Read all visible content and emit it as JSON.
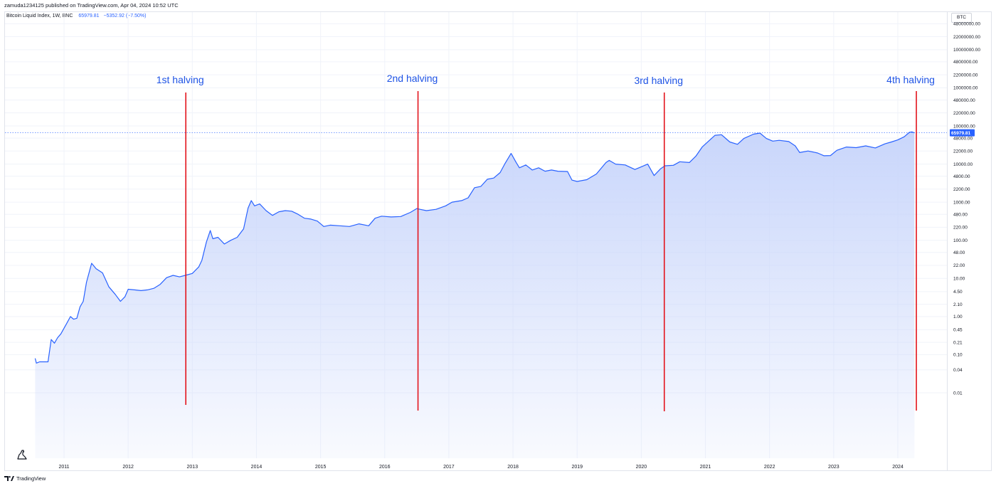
{
  "publisher": "zamuda1234125 published on TradingView.com, Apr 04, 2024 10:52 UTC",
  "legend": {
    "symbol": "Bitcoin Liquid Index, 1W, BNC",
    "value": "65979.81",
    "change": "−5352.92 (−7.50%)"
  },
  "currency_button": "BTC",
  "footer": {
    "brand": "TradingView"
  },
  "icons": {
    "watermark": "dino-icon",
    "brand": "tradingview-logo-icon"
  },
  "colors": {
    "line": "#2962ff",
    "fill_top": "#c9d6fb",
    "halving_line": "#e3141c",
    "annotation": "#1e53e5",
    "last_price_bg": "#2962ff"
  },
  "chart_data": {
    "type": "area",
    "title": "",
    "xlabel": "",
    "ylabel": "",
    "yscale": "log",
    "grid": true,
    "last_price": {
      "value": 65979.81,
      "label": "65979.81"
    },
    "x_ticks": [
      "2011",
      "2012",
      "2013",
      "2014",
      "2015",
      "2016",
      "2017",
      "2018",
      "2019",
      "2020",
      "2021",
      "2022",
      "2023",
      "2024"
    ],
    "y_ticks": [
      {
        "v": 48000000,
        "label": "48000000.00"
      },
      {
        "v": 22000000,
        "label": "22000000.00"
      },
      {
        "v": 10000000,
        "label": "10000000.00"
      },
      {
        "v": 4800000,
        "label": "4800000.00"
      },
      {
        "v": 2200000,
        "label": "2200000.00"
      },
      {
        "v": 1000000,
        "label": "1000000.00"
      },
      {
        "v": 480000,
        "label": "480000.00"
      },
      {
        "v": 220000,
        "label": "220000.00"
      },
      {
        "v": 100000,
        "label": "100000.00"
      },
      {
        "v": 48000,
        "label": "48000.00"
      },
      {
        "v": 22000,
        "label": "22000.00"
      },
      {
        "v": 10000,
        "label": "10000.00"
      },
      {
        "v": 4800,
        "label": "4800.00"
      },
      {
        "v": 2200,
        "label": "2200.00"
      },
      {
        "v": 1000,
        "label": "1000.00"
      },
      {
        "v": 480,
        "label": "480.00"
      },
      {
        "v": 220,
        "label": "220.00"
      },
      {
        "v": 100,
        "label": "100.00"
      },
      {
        "v": 48,
        "label": "48.00"
      },
      {
        "v": 22,
        "label": "22.00"
      },
      {
        "v": 10,
        "label": "10.00"
      },
      {
        "v": 4.5,
        "label": "4.50"
      },
      {
        "v": 2.1,
        "label": "2.10"
      },
      {
        "v": 1,
        "label": "1.00"
      },
      {
        "v": 0.45,
        "label": "0.45"
      },
      {
        "v": 0.21,
        "label": "0.21"
      },
      {
        "v": 0.1,
        "label": "0.10"
      },
      {
        "v": 0.04,
        "label": "0.04"
      },
      {
        "v": 0.01,
        "label": "0.01"
      }
    ],
    "annotations": [
      {
        "label": "1st halving",
        "date": 2012.91
      },
      {
        "label": "2nd halving",
        "date": 2016.53
      },
      {
        "label": "3rd halving",
        "date": 2020.37
      },
      {
        "label": "4th halving",
        "date": 2024.3
      }
    ],
    "series": [
      {
        "values": [
          [
            2010.55,
            0.08
          ],
          [
            2010.57,
            0.06
          ],
          [
            2010.62,
            0.065
          ],
          [
            2010.75,
            0.065
          ],
          [
            2010.8,
            0.25
          ],
          [
            2010.85,
            0.2
          ],
          [
            2010.9,
            0.28
          ],
          [
            2010.95,
            0.35
          ],
          [
            2011.05,
            0.7
          ],
          [
            2011.1,
            1.0
          ],
          [
            2011.15,
            0.85
          ],
          [
            2011.2,
            0.9
          ],
          [
            2011.25,
            1.8
          ],
          [
            2011.3,
            2.5
          ],
          [
            2011.35,
            8
          ],
          [
            2011.43,
            25
          ],
          [
            2011.5,
            18
          ],
          [
            2011.6,
            14
          ],
          [
            2011.7,
            6
          ],
          [
            2011.8,
            3.8
          ],
          [
            2011.88,
            2.5
          ],
          [
            2011.95,
            3.3
          ],
          [
            2012.0,
            5.2
          ],
          [
            2012.1,
            5.0
          ],
          [
            2012.2,
            4.8
          ],
          [
            2012.3,
            5.0
          ],
          [
            2012.4,
            5.5
          ],
          [
            2012.5,
            7.0
          ],
          [
            2012.6,
            10.5
          ],
          [
            2012.7,
            12
          ],
          [
            2012.8,
            11
          ],
          [
            2012.91,
            12.3
          ],
          [
            2013.0,
            13.5
          ],
          [
            2013.1,
            20
          ],
          [
            2013.15,
            30
          ],
          [
            2013.22,
            90
          ],
          [
            2013.28,
            180
          ],
          [
            2013.32,
            110
          ],
          [
            2013.4,
            120
          ],
          [
            2013.5,
            80
          ],
          [
            2013.6,
            100
          ],
          [
            2013.7,
            120
          ],
          [
            2013.8,
            200
          ],
          [
            2013.87,
            700
          ],
          [
            2013.92,
            1100
          ],
          [
            2013.97,
            800
          ],
          [
            2014.05,
            900
          ],
          [
            2014.15,
            600
          ],
          [
            2014.25,
            450
          ],
          [
            2014.35,
            560
          ],
          [
            2014.45,
            600
          ],
          [
            2014.55,
            580
          ],
          [
            2014.65,
            480
          ],
          [
            2014.75,
            380
          ],
          [
            2014.85,
            360
          ],
          [
            2014.95,
            320
          ],
          [
            2015.05,
            230
          ],
          [
            2015.15,
            250
          ],
          [
            2015.3,
            240
          ],
          [
            2015.45,
            230
          ],
          [
            2015.6,
            270
          ],
          [
            2015.75,
            240
          ],
          [
            2015.85,
            380
          ],
          [
            2015.95,
            430
          ],
          [
            2016.1,
            410
          ],
          [
            2016.25,
            420
          ],
          [
            2016.4,
            540
          ],
          [
            2016.5,
            680
          ],
          [
            2016.55,
            650
          ],
          [
            2016.65,
            600
          ],
          [
            2016.8,
            650
          ],
          [
            2016.95,
            800
          ],
          [
            2017.05,
            1000
          ],
          [
            2017.2,
            1100
          ],
          [
            2017.3,
            1300
          ],
          [
            2017.4,
            2400
          ],
          [
            2017.5,
            2600
          ],
          [
            2017.6,
            4000
          ],
          [
            2017.7,
            4300
          ],
          [
            2017.8,
            6000
          ],
          [
            2017.87,
            10000
          ],
          [
            2017.97,
            19000
          ],
          [
            2018.05,
            11000
          ],
          [
            2018.1,
            8000
          ],
          [
            2018.2,
            9500
          ],
          [
            2018.3,
            7000
          ],
          [
            2018.4,
            8000
          ],
          [
            2018.5,
            6500
          ],
          [
            2018.6,
            7000
          ],
          [
            2018.7,
            6500
          ],
          [
            2018.85,
            6400
          ],
          [
            2018.92,
            3800
          ],
          [
            2019.0,
            3500
          ],
          [
            2019.15,
            3900
          ],
          [
            2019.3,
            5500
          ],
          [
            2019.45,
            11000
          ],
          [
            2019.5,
            12500
          ],
          [
            2019.6,
            10000
          ],
          [
            2019.75,
            9500
          ],
          [
            2019.9,
            7200
          ],
          [
            2020.0,
            8500
          ],
          [
            2020.1,
            10000
          ],
          [
            2020.2,
            5000
          ],
          [
            2020.3,
            7500
          ],
          [
            2020.37,
            9000
          ],
          [
            2020.5,
            9300
          ],
          [
            2020.6,
            11500
          ],
          [
            2020.75,
            11000
          ],
          [
            2020.85,
            16000
          ],
          [
            2020.95,
            28000
          ],
          [
            2021.05,
            40000
          ],
          [
            2021.15,
            57000
          ],
          [
            2021.25,
            59000
          ],
          [
            2021.38,
            38000
          ],
          [
            2021.5,
            33000
          ],
          [
            2021.6,
            47000
          ],
          [
            2021.75,
            61000
          ],
          [
            2021.85,
            65000
          ],
          [
            2021.95,
            47000
          ],
          [
            2022.05,
            40000
          ],
          [
            2022.15,
            42000
          ],
          [
            2022.3,
            39000
          ],
          [
            2022.4,
            30000
          ],
          [
            2022.47,
            20000
          ],
          [
            2022.6,
            22000
          ],
          [
            2022.75,
            19500
          ],
          [
            2022.85,
            16500
          ],
          [
            2022.95,
            16700
          ],
          [
            2023.05,
            23000
          ],
          [
            2023.2,
            28000
          ],
          [
            2023.35,
            27000
          ],
          [
            2023.5,
            30000
          ],
          [
            2023.65,
            26500
          ],
          [
            2023.8,
            34000
          ],
          [
            2023.9,
            38000
          ],
          [
            2024.0,
            43000
          ],
          [
            2024.1,
            52000
          ],
          [
            2024.18,
            68000
          ],
          [
            2024.22,
            70000
          ],
          [
            2024.26,
            66000
          ]
        ]
      }
    ]
  }
}
